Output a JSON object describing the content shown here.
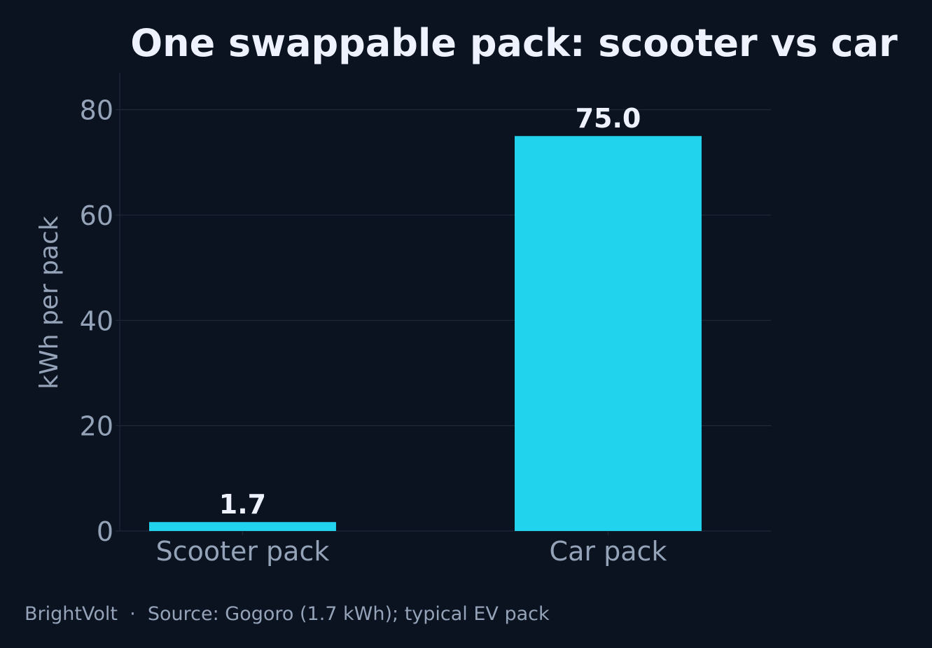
{
  "chart_data": {
    "type": "bar",
    "title": "One swappable pack: scooter vs car",
    "xlabel": "",
    "ylabel": "kWh per pack",
    "categories": [
      "Scooter pack",
      "Car pack"
    ],
    "values": [
      1.7,
      75.0
    ],
    "value_labels": [
      "1.7",
      "75.0"
    ],
    "ylim": [
      0,
      87
    ],
    "yticks": [
      0,
      20,
      40,
      60,
      80
    ],
    "grid": true,
    "legend": "none",
    "bar_color": "#22d3ee"
  },
  "footer": {
    "text": "BrightVolt  ·  Source: Gogoro (1.7 kWh); typical EV pack"
  },
  "colors": {
    "background": "#0b1220",
    "title": "#eef2ff",
    "muted_text": "#94a3b8",
    "grid": "#1e293b"
  }
}
